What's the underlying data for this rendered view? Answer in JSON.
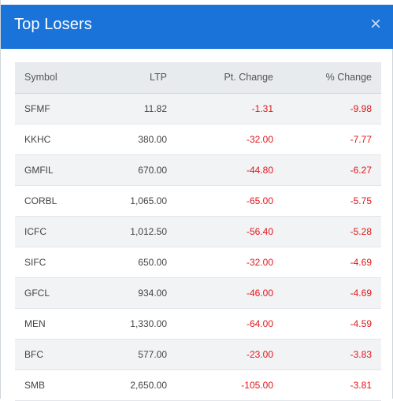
{
  "modal": {
    "title": "Top Losers",
    "close_icon": "×"
  },
  "colors": {
    "header_bg": "#1a73d8",
    "negative": "#e0161b",
    "table_header_bg": "#e8ebee"
  },
  "table": {
    "headers": {
      "symbol": "Symbol",
      "ltp": "LTP",
      "pt_change": "Pt. Change",
      "pct_change": "% Change"
    },
    "rows": [
      {
        "symbol": "SFMF",
        "ltp": "11.82",
        "pt_change": "-1.31",
        "pct_change": "-9.98"
      },
      {
        "symbol": "KKHC",
        "ltp": "380.00",
        "pt_change": "-32.00",
        "pct_change": "-7.77"
      },
      {
        "symbol": "GMFIL",
        "ltp": "670.00",
        "pt_change": "-44.80",
        "pct_change": "-6.27"
      },
      {
        "symbol": "CORBL",
        "ltp": "1,065.00",
        "pt_change": "-65.00",
        "pct_change": "-5.75"
      },
      {
        "symbol": "ICFC",
        "ltp": "1,012.50",
        "pt_change": "-56.40",
        "pct_change": "-5.28"
      },
      {
        "symbol": "SIFC",
        "ltp": "650.00",
        "pt_change": "-32.00",
        "pct_change": "-4.69"
      },
      {
        "symbol": "GFCL",
        "ltp": "934.00",
        "pt_change": "-46.00",
        "pct_change": "-4.69"
      },
      {
        "symbol": "MEN",
        "ltp": "1,330.00",
        "pt_change": "-64.00",
        "pct_change": "-4.59"
      },
      {
        "symbol": "BFC",
        "ltp": "577.00",
        "pt_change": "-23.00",
        "pct_change": "-3.83"
      },
      {
        "symbol": "SMB",
        "ltp": "2,650.00",
        "pt_change": "-105.00",
        "pct_change": "-3.81"
      }
    ]
  }
}
